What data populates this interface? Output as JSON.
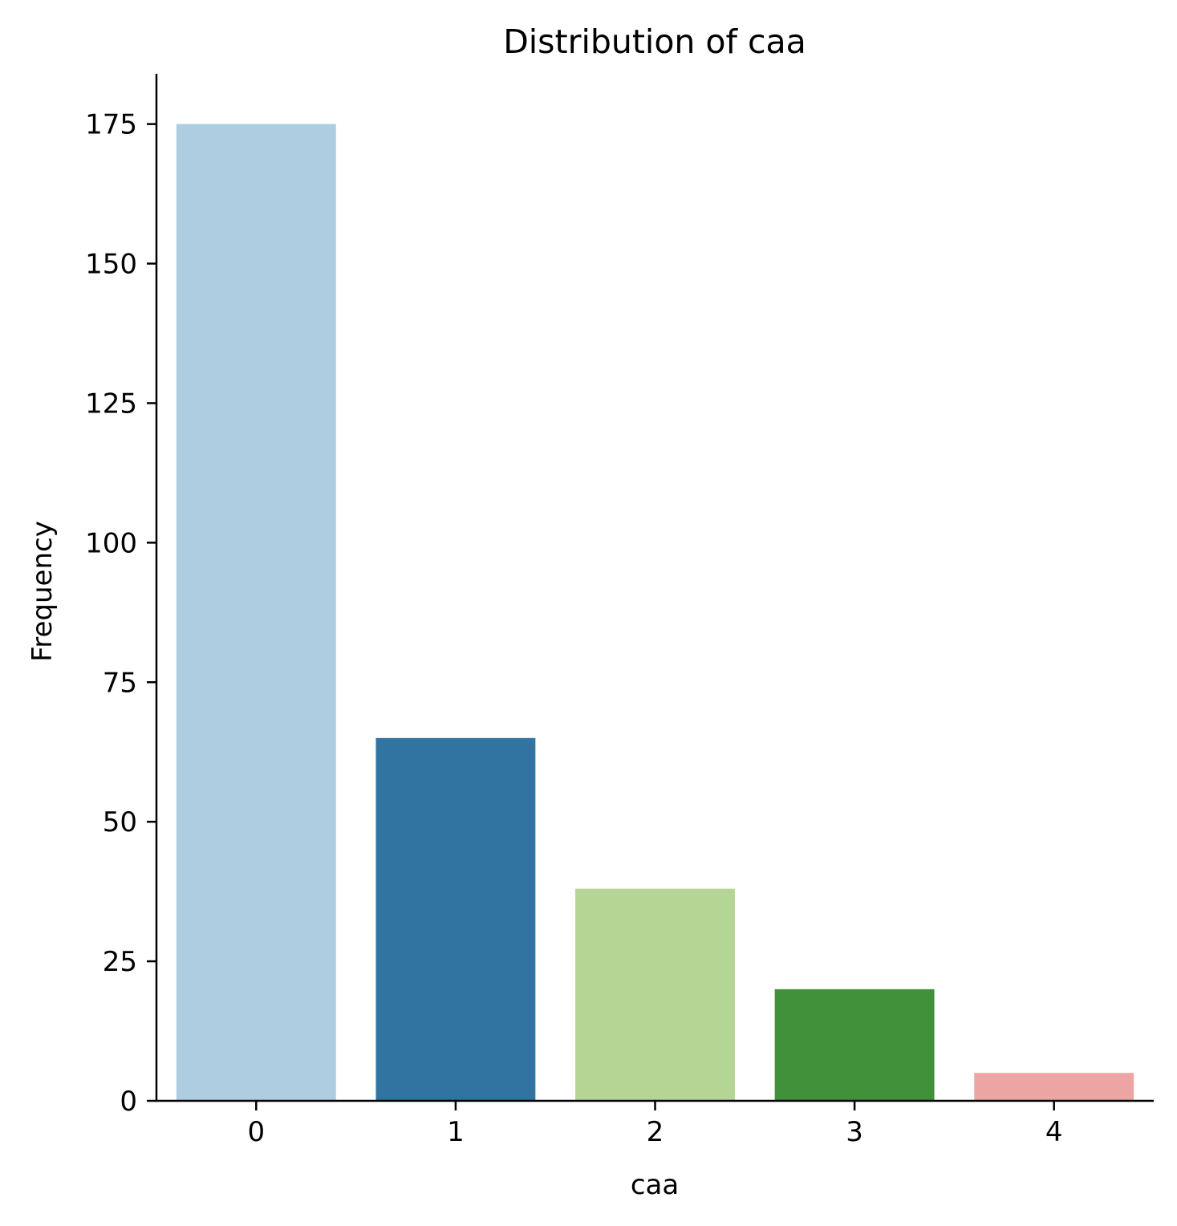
{
  "chart_data": {
    "type": "bar",
    "title": "Distribution of caa",
    "xlabel": "caa",
    "ylabel": "Frequency",
    "categories": [
      "0",
      "1",
      "2",
      "3",
      "4"
    ],
    "values": [
      175,
      65,
      38,
      20,
      5
    ],
    "colors": [
      "#aecde0",
      "#3174a1",
      "#b4d593",
      "#40913a",
      "#eda5a4"
    ],
    "ylim": [
      0,
      184
    ],
    "yticks": [
      0,
      25,
      50,
      75,
      100,
      125,
      150,
      175
    ],
    "ytick_labels": [
      "0",
      "25",
      "50",
      "75",
      "100",
      "125",
      "150",
      "175"
    ],
    "grid": false,
    "legend": "none"
  }
}
